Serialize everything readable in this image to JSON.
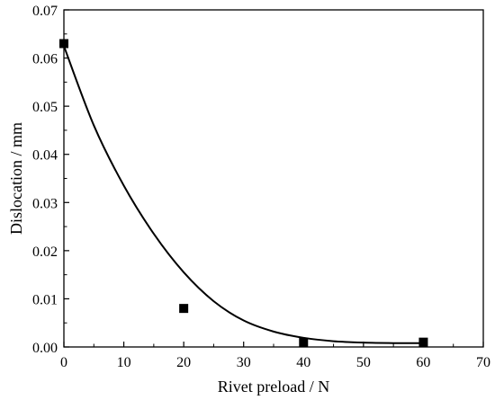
{
  "chart_data": {
    "type": "scatter",
    "xlabel": "Rivet preload / N",
    "ylabel": "Dislocation / mm",
    "xlim": [
      0,
      70
    ],
    "ylim": [
      0,
      0.07
    ],
    "grid": false,
    "x_ticks": [
      0,
      10,
      20,
      30,
      40,
      50,
      60,
      70
    ],
    "x_tick_labels": [
      "0",
      "10",
      "20",
      "30",
      "40",
      "50",
      "60",
      "70"
    ],
    "y_ticks": [
      0,
      0.01,
      0.02,
      0.03,
      0.04,
      0.05,
      0.06,
      0.07
    ],
    "y_tick_labels": [
      "0.00",
      "0.01",
      "0.02",
      "0.03",
      "0.04",
      "0.05",
      "0.06",
      "0.07"
    ],
    "series": [
      {
        "marker": "square",
        "color": "#000000",
        "x": [
          0,
          20,
          40,
          60
        ],
        "y": [
          0.063,
          0.008,
          0.001,
          0.001
        ]
      }
    ],
    "fit_curve": {
      "style": "line",
      "color": "#000000",
      "x": [
        0,
        5,
        10,
        15,
        20,
        25,
        30,
        35,
        40,
        45,
        50,
        55,
        60
      ],
      "y": [
        0.0625,
        0.046,
        0.0335,
        0.0235,
        0.0155,
        0.0095,
        0.0055,
        0.0032,
        0.0019,
        0.0012,
        0.0009,
        0.0008,
        0.0008
      ]
    }
  }
}
